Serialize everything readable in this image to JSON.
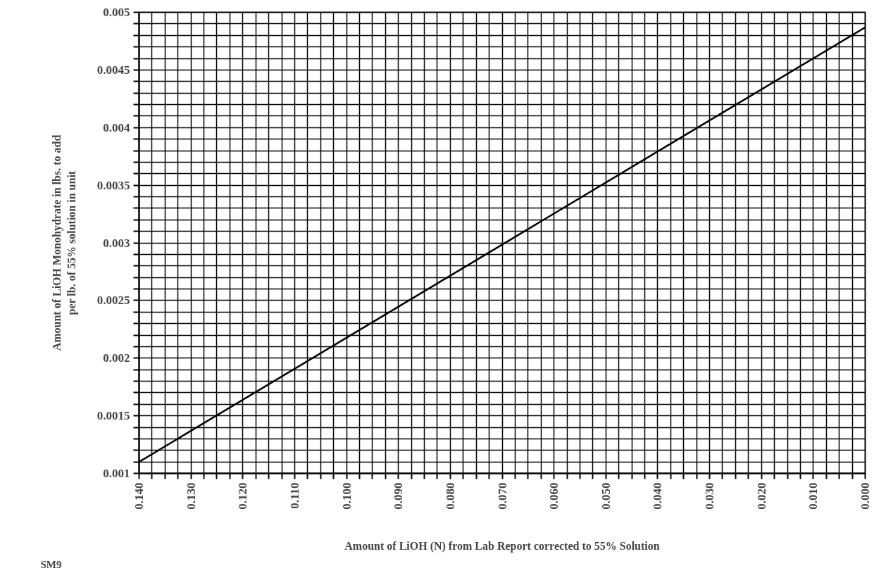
{
  "chart_data": {
    "type": "line",
    "xlabel": "Amount of LiOH (N) from Lab Report corrected to 55% Solution",
    "ylabel": "Amount of LiOH Monohydrate in lbs. to add\nper lb. of 55% solution in unit",
    "annotations": [
      "SM9"
    ],
    "x": [
      0.14,
      0.0
    ],
    "series": [
      {
        "color": "#000000",
        "values": [
          0.0011,
          0.00487
        ]
      }
    ],
    "xlim": [
      0.14,
      0.0
    ],
    "ylim": [
      0.001,
      0.005
    ],
    "xticks": [
      {
        "value": 0.14,
        "label": "0.140"
      },
      {
        "value": 0.1375,
        "label": null
      },
      {
        "value": 0.135,
        "label": null
      },
      {
        "value": 0.1325,
        "label": null
      },
      {
        "value": 0.13,
        "label": "0.130"
      },
      {
        "value": 0.1275,
        "label": null
      },
      {
        "value": 0.125,
        "label": null
      },
      {
        "value": 0.1225,
        "label": null
      },
      {
        "value": 0.12,
        "label": "0.120"
      },
      {
        "value": 0.1175,
        "label": null
      },
      {
        "value": 0.115,
        "label": null
      },
      {
        "value": 0.1125,
        "label": null
      },
      {
        "value": 0.11,
        "label": "0.110"
      },
      {
        "value": 0.1075,
        "label": null
      },
      {
        "value": 0.105,
        "label": null
      },
      {
        "value": 0.1025,
        "label": null
      },
      {
        "value": 0.1,
        "label": "0.100"
      },
      {
        "value": 0.0975,
        "label": null
      },
      {
        "value": 0.095,
        "label": null
      },
      {
        "value": 0.0925,
        "label": null
      },
      {
        "value": 0.09,
        "label": "0.090"
      },
      {
        "value": 0.0875,
        "label": null
      },
      {
        "value": 0.085,
        "label": null
      },
      {
        "value": 0.0825,
        "label": null
      },
      {
        "value": 0.08,
        "label": "0.080"
      },
      {
        "value": 0.0775,
        "label": null
      },
      {
        "value": 0.075,
        "label": null
      },
      {
        "value": 0.0725,
        "label": null
      },
      {
        "value": 0.07,
        "label": "0.070"
      },
      {
        "value": 0.0675,
        "label": null
      },
      {
        "value": 0.065,
        "label": null
      },
      {
        "value": 0.0625,
        "label": null
      },
      {
        "value": 0.06,
        "label": "0.060"
      },
      {
        "value": 0.0575,
        "label": null
      },
      {
        "value": 0.055,
        "label": null
      },
      {
        "value": 0.0525,
        "label": null
      },
      {
        "value": 0.05,
        "label": "0.050"
      },
      {
        "value": 0.0475,
        "label": null
      },
      {
        "value": 0.045,
        "label": null
      },
      {
        "value": 0.0425,
        "label": null
      },
      {
        "value": 0.04,
        "label": "0.040"
      },
      {
        "value": 0.0375,
        "label": null
      },
      {
        "value": 0.035,
        "label": null
      },
      {
        "value": 0.0325,
        "label": null
      },
      {
        "value": 0.03,
        "label": "0.030"
      },
      {
        "value": 0.0275,
        "label": null
      },
      {
        "value": 0.025,
        "label": null
      },
      {
        "value": 0.0225,
        "label": null
      },
      {
        "value": 0.02,
        "label": "0.020"
      },
      {
        "value": 0.0175,
        "label": null
      },
      {
        "value": 0.015,
        "label": null
      },
      {
        "value": 0.0125,
        "label": null
      },
      {
        "value": 0.01,
        "label": "0.010"
      },
      {
        "value": 0.0075,
        "label": null
      },
      {
        "value": 0.005,
        "label": null
      },
      {
        "value": 0.0025,
        "label": null
      },
      {
        "value": 0.0,
        "label": "0.000"
      }
    ],
    "yticks": [
      0.001,
      {
        "value": 0.0011,
        "label": null
      },
      {
        "value": 0.0012,
        "label": null
      },
      {
        "value": 0.0013,
        "label": null
      },
      {
        "value": 0.0014,
        "label": null
      },
      0.0015,
      {
        "value": 0.0016,
        "label": null
      },
      {
        "value": 0.0017,
        "label": null
      },
      {
        "value": 0.0018,
        "label": null
      },
      {
        "value": 0.0019,
        "label": null
      },
      0.002,
      {
        "value": 0.0021,
        "label": null
      },
      {
        "value": 0.0022,
        "label": null
      },
      {
        "value": 0.0023,
        "label": null
      },
      {
        "value": 0.0024,
        "label": null
      },
      0.0025,
      {
        "value": 0.0026,
        "label": null
      },
      {
        "value": 0.0027,
        "label": null
      },
      {
        "value": 0.0028,
        "label": null
      },
      {
        "value": 0.0029,
        "label": null
      },
      0.003,
      {
        "value": 0.0031,
        "label": null
      },
      {
        "value": 0.0032,
        "label": null
      },
      {
        "value": 0.0033,
        "label": null
      },
      {
        "value": 0.0034,
        "label": null
      },
      0.0035,
      {
        "value": 0.0036,
        "label": null
      },
      {
        "value": 0.0037,
        "label": null
      },
      {
        "value": 0.0038,
        "label": null
      },
      {
        "value": 0.0039,
        "label": null
      },
      0.004,
      {
        "value": 0.0041,
        "label": null
      },
      {
        "value": 0.0042,
        "label": null
      },
      {
        "value": 0.0043,
        "label": null
      },
      {
        "value": 0.0044,
        "label": null
      },
      0.0045,
      {
        "value": 0.0046,
        "label": null
      },
      {
        "value": 0.0047,
        "label": null
      },
      {
        "value": 0.0048,
        "label": null
      },
      {
        "value": 0.0049,
        "label": null
      },
      0.005
    ],
    "grid": true,
    "marker": "none",
    "line_style": "solid"
  }
}
